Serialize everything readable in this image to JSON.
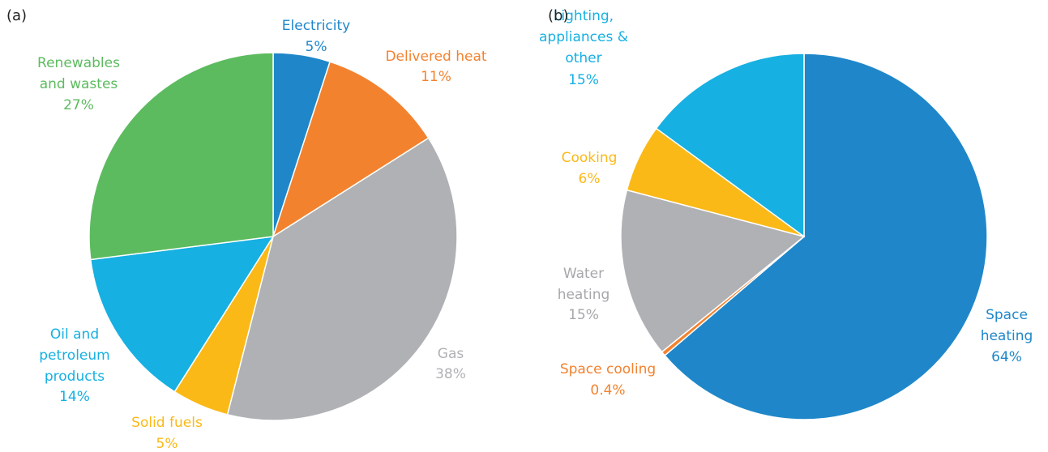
{
  "chart_data": [
    {
      "type": "pie",
      "title": "(a)",
      "categories": [
        "Electricity",
        "Delivered heat",
        "Gas",
        "Solid fuels",
        "Oil and petroleum products",
        "Renewables and wastes"
      ],
      "values": [
        5,
        11,
        38,
        5,
        14,
        27
      ],
      "value_labels": [
        "5%",
        "11%",
        "38%",
        "5%",
        "14%",
        "27%"
      ],
      "colors": [
        "#1f87c9",
        "#f3822f",
        "#b0b1b4",
        "#fbb918",
        "#16b0e2",
        "#5dbb5f"
      ]
    },
    {
      "type": "pie",
      "title": "(b)",
      "categories": [
        "Space heating",
        "Space cooling",
        "Water heating",
        "Cooking",
        "Lighting, appliances & other"
      ],
      "values": [
        64,
        0.4,
        15,
        6,
        15
      ],
      "value_labels": [
        "64%",
        "0.4%",
        "15%",
        "6%",
        "15%"
      ],
      "colors": [
        "#1f87c9",
        "#f3822f",
        "#b0b1b4",
        "#fbb918",
        "#16b0e2"
      ]
    }
  ]
}
